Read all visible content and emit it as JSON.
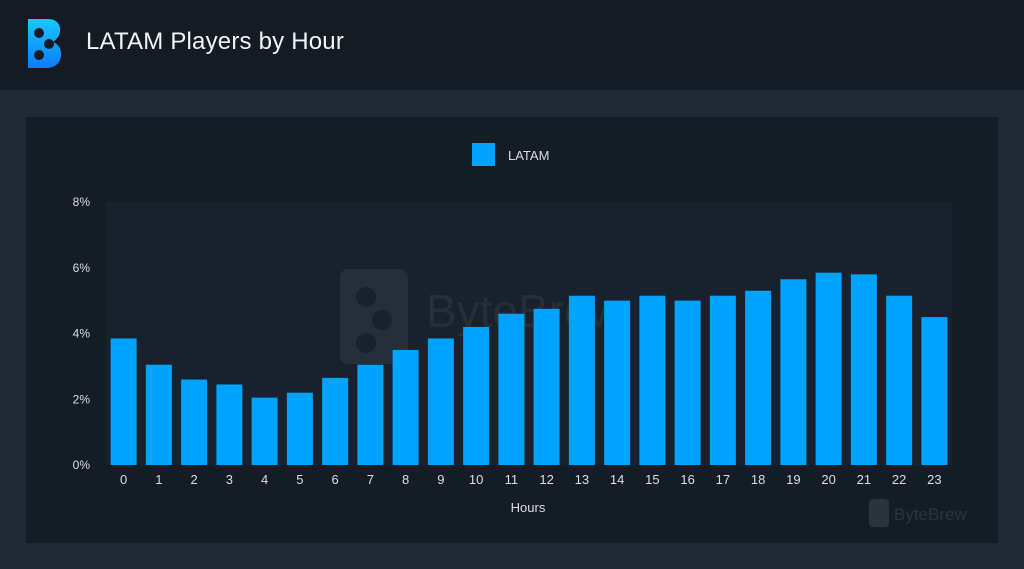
{
  "header": {
    "title": "LATAM Players by Hour",
    "logo_icon": "bytebrew-logo-icon"
  },
  "watermark": {
    "center_text": "ByteBrew",
    "corner_text": "ByteBrew"
  },
  "colors": {
    "bar": "#00a3ff",
    "page_bg": "#1f2935",
    "header_bg": "#141b24",
    "panel_bg": "#141c25",
    "plot_bg": "#18212c"
  },
  "chart_data": {
    "type": "bar",
    "title": "",
    "xlabel": "Hours",
    "ylabel": "",
    "categories": [
      "0",
      "1",
      "2",
      "3",
      "4",
      "5",
      "6",
      "7",
      "8",
      "9",
      "10",
      "11",
      "12",
      "13",
      "14",
      "15",
      "16",
      "17",
      "18",
      "19",
      "20",
      "21",
      "22",
      "23"
    ],
    "series": [
      {
        "name": "LATAM",
        "values": [
          3.85,
          3.05,
          2.6,
          2.45,
          2.05,
          2.2,
          2.65,
          3.05,
          3.5,
          3.85,
          4.2,
          4.6,
          4.75,
          5.15,
          5.0,
          5.15,
          5.0,
          5.15,
          5.3,
          5.65,
          5.85,
          5.8,
          5.15,
          4.5
        ]
      }
    ],
    "yticks": [
      "0%",
      "2%",
      "4%",
      "6%",
      "8%"
    ],
    "ylim": [
      0,
      8
    ],
    "unit": "%",
    "legend": "top-center",
    "grid": false
  }
}
